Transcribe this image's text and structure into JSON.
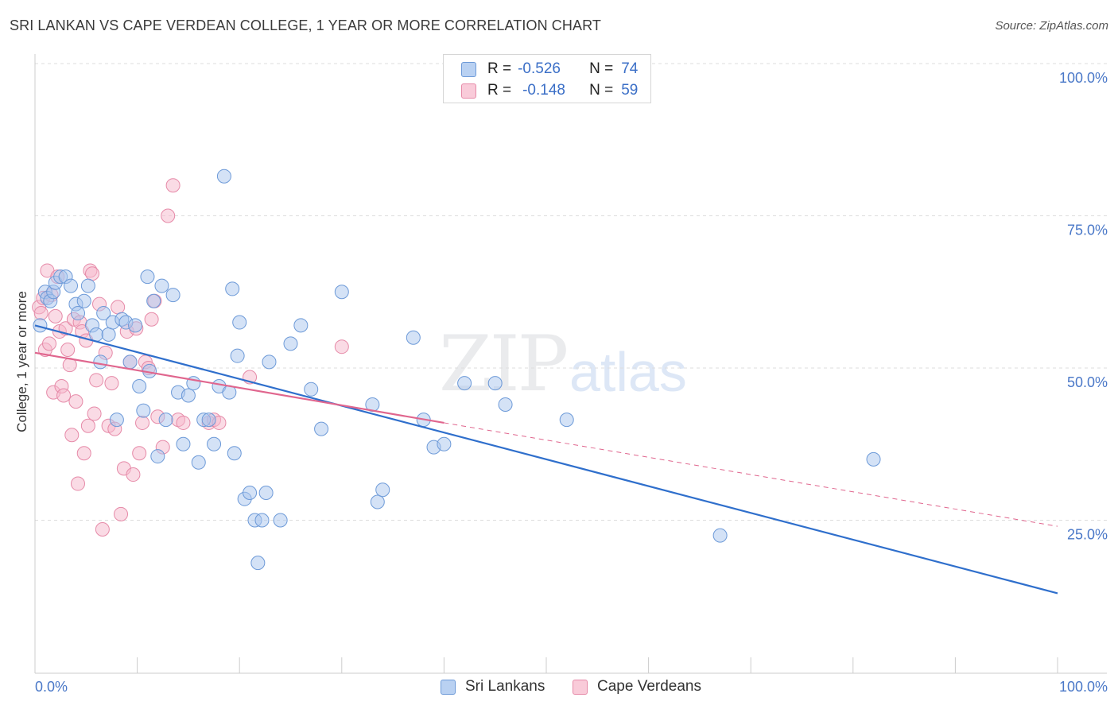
{
  "header": {
    "title": "SRI LANKAN VS CAPE VERDEAN COLLEGE, 1 YEAR OR MORE CORRELATION CHART",
    "source": "Source: ZipAtlas.com"
  },
  "watermark": {
    "zip": "ZIP",
    "atlas": "atlas"
  },
  "legend": {
    "rows": [
      {
        "r_label": "R =",
        "r_value": "-0.526",
        "n_label": "N =",
        "n_value": "74"
      },
      {
        "r_label": "R =",
        "r_value": "-0.148",
        "n_label": "N =",
        "n_value": "59"
      }
    ]
  },
  "colors": {
    "blue_fill": "#a9c6ee",
    "blue_stroke": "#6d9ad8",
    "blue_line": "#2f6fcc",
    "pink_fill": "#f5b8cb",
    "pink_stroke": "#e68aa8",
    "pink_line": "#e0668e",
    "tick_text": "#4a78c8"
  },
  "chart_data": {
    "type": "scatter",
    "title": "SRI LANKAN VS CAPE VERDEAN COLLEGE, 1 YEAR OR MORE CORRELATION CHART",
    "xlabel": "",
    "ylabel": "College, 1 year or more",
    "xlim": [
      0,
      100
    ],
    "ylim": [
      0,
      100
    ],
    "x_tick_labels": [
      "0.0%",
      "100.0%"
    ],
    "y_ticks": [
      {
        "value": 100,
        "label": "100.0%"
      },
      {
        "value": 75,
        "label": "75.0%"
      },
      {
        "value": 50,
        "label": "50.0%"
      },
      {
        "value": 25,
        "label": "25.0%"
      }
    ],
    "legend_position": "top-center",
    "series": [
      {
        "name": "Sri Lankans",
        "color": "#a9c6ee",
        "R": -0.526,
        "N": 74,
        "trend": {
          "x_start": 0,
          "y_start": 57,
          "x_end": 100,
          "y_end": 13
        },
        "points": [
          [
            0.5,
            57.0
          ],
          [
            1.0,
            62.5
          ],
          [
            1.2,
            61.5
          ],
          [
            1.5,
            61.0
          ],
          [
            1.8,
            62.5
          ],
          [
            2.0,
            64.0
          ],
          [
            2.5,
            65.0
          ],
          [
            3.0,
            65.0
          ],
          [
            3.5,
            63.5
          ],
          [
            4.0,
            60.5
          ],
          [
            4.2,
            59.0
          ],
          [
            4.8,
            61.0
          ],
          [
            5.2,
            63.5
          ],
          [
            5.6,
            57.0
          ],
          [
            6.0,
            55.5
          ],
          [
            6.4,
            51.0
          ],
          [
            6.7,
            59.0
          ],
          [
            7.2,
            55.5
          ],
          [
            7.6,
            57.5
          ],
          [
            8.0,
            41.5
          ],
          [
            8.5,
            58.0
          ],
          [
            8.9,
            57.5
          ],
          [
            9.3,
            51.0
          ],
          [
            9.8,
            57.0
          ],
          [
            10.2,
            47.0
          ],
          [
            10.6,
            43.0
          ],
          [
            11.0,
            65.0
          ],
          [
            11.2,
            49.5
          ],
          [
            11.6,
            61.0
          ],
          [
            12.0,
            35.5
          ],
          [
            12.4,
            63.5
          ],
          [
            12.8,
            41.5
          ],
          [
            13.5,
            62.0
          ],
          [
            14.0,
            46.0
          ],
          [
            14.5,
            37.5
          ],
          [
            15.0,
            45.5
          ],
          [
            15.5,
            47.5
          ],
          [
            16.0,
            34.5
          ],
          [
            16.5,
            41.5
          ],
          [
            17.0,
            41.5
          ],
          [
            17.5,
            37.5
          ],
          [
            18.0,
            47.0
          ],
          [
            18.5,
            81.5
          ],
          [
            19.0,
            46.0
          ],
          [
            19.3,
            63.0
          ],
          [
            19.5,
            36.0
          ],
          [
            19.8,
            52.0
          ],
          [
            20.0,
            57.5
          ],
          [
            20.5,
            28.5
          ],
          [
            21.0,
            29.5
          ],
          [
            21.5,
            25.0
          ],
          [
            21.8,
            18.0
          ],
          [
            22.2,
            25.0
          ],
          [
            22.6,
            29.5
          ],
          [
            22.9,
            51.0
          ],
          [
            24.0,
            25.0
          ],
          [
            25.0,
            54.0
          ],
          [
            26.0,
            57.0
          ],
          [
            27.0,
            46.5
          ],
          [
            28.0,
            40.0
          ],
          [
            30.0,
            62.5
          ],
          [
            33.0,
            44.0
          ],
          [
            33.5,
            28.0
          ],
          [
            34.0,
            30.0
          ],
          [
            37.0,
            55.0
          ],
          [
            38.0,
            41.5
          ],
          [
            39.0,
            37.0
          ],
          [
            40.0,
            37.5
          ],
          [
            42.0,
            47.5
          ],
          [
            45.0,
            47.5
          ],
          [
            46.0,
            44.0
          ],
          [
            52.0,
            41.5
          ],
          [
            82.0,
            35.0
          ],
          [
            67.0,
            22.5
          ]
        ]
      },
      {
        "name": "Cape Verdeans",
        "color": "#f5b8cb",
        "R": -0.148,
        "N": 59,
        "trend": {
          "x_start": 0,
          "y_start": 52.5,
          "x_end": 40,
          "y_end": 41,
          "dash_x_end": 100,
          "dash_y_end": 24
        },
        "points": [
          [
            0.4,
            60.0
          ],
          [
            0.6,
            59.0
          ],
          [
            0.8,
            61.5
          ],
          [
            1.0,
            53.0
          ],
          [
            1.2,
            66.0
          ],
          [
            1.4,
            54.0
          ],
          [
            1.6,
            62.0
          ],
          [
            1.8,
            46.0
          ],
          [
            2.0,
            58.5
          ],
          [
            2.2,
            65.0
          ],
          [
            2.4,
            56.0
          ],
          [
            2.6,
            47.0
          ],
          [
            2.8,
            45.5
          ],
          [
            3.0,
            56.5
          ],
          [
            3.2,
            53.0
          ],
          [
            3.4,
            50.5
          ],
          [
            3.6,
            39.0
          ],
          [
            3.8,
            58.0
          ],
          [
            4.0,
            44.5
          ],
          [
            4.2,
            31.0
          ],
          [
            4.4,
            57.5
          ],
          [
            4.6,
            56.0
          ],
          [
            4.8,
            36.0
          ],
          [
            5.0,
            54.5
          ],
          [
            5.2,
            40.5
          ],
          [
            5.4,
            66.0
          ],
          [
            5.6,
            65.5
          ],
          [
            5.8,
            42.5
          ],
          [
            6.0,
            48.0
          ],
          [
            6.3,
            60.5
          ],
          [
            6.6,
            23.5
          ],
          [
            6.9,
            52.5
          ],
          [
            7.2,
            40.5
          ],
          [
            7.5,
            47.5
          ],
          [
            7.8,
            40.0
          ],
          [
            8.1,
            60.0
          ],
          [
            8.4,
            26.0
          ],
          [
            8.7,
            33.5
          ],
          [
            9.0,
            56.0
          ],
          [
            9.3,
            51.0
          ],
          [
            9.6,
            32.5
          ],
          [
            9.9,
            56.5
          ],
          [
            10.2,
            36.0
          ],
          [
            10.5,
            41.0
          ],
          [
            10.8,
            51.0
          ],
          [
            11.1,
            50.0
          ],
          [
            11.4,
            58.0
          ],
          [
            11.7,
            61.0
          ],
          [
            12.0,
            42.0
          ],
          [
            12.5,
            37.0
          ],
          [
            13.0,
            75.0
          ],
          [
            13.5,
            80.0
          ],
          [
            14.0,
            41.5
          ],
          [
            14.5,
            41.0
          ],
          [
            17.0,
            41.0
          ],
          [
            17.5,
            41.5
          ],
          [
            18.0,
            41.0
          ],
          [
            21.0,
            48.5
          ],
          [
            30.0,
            53.5
          ]
        ]
      }
    ]
  }
}
